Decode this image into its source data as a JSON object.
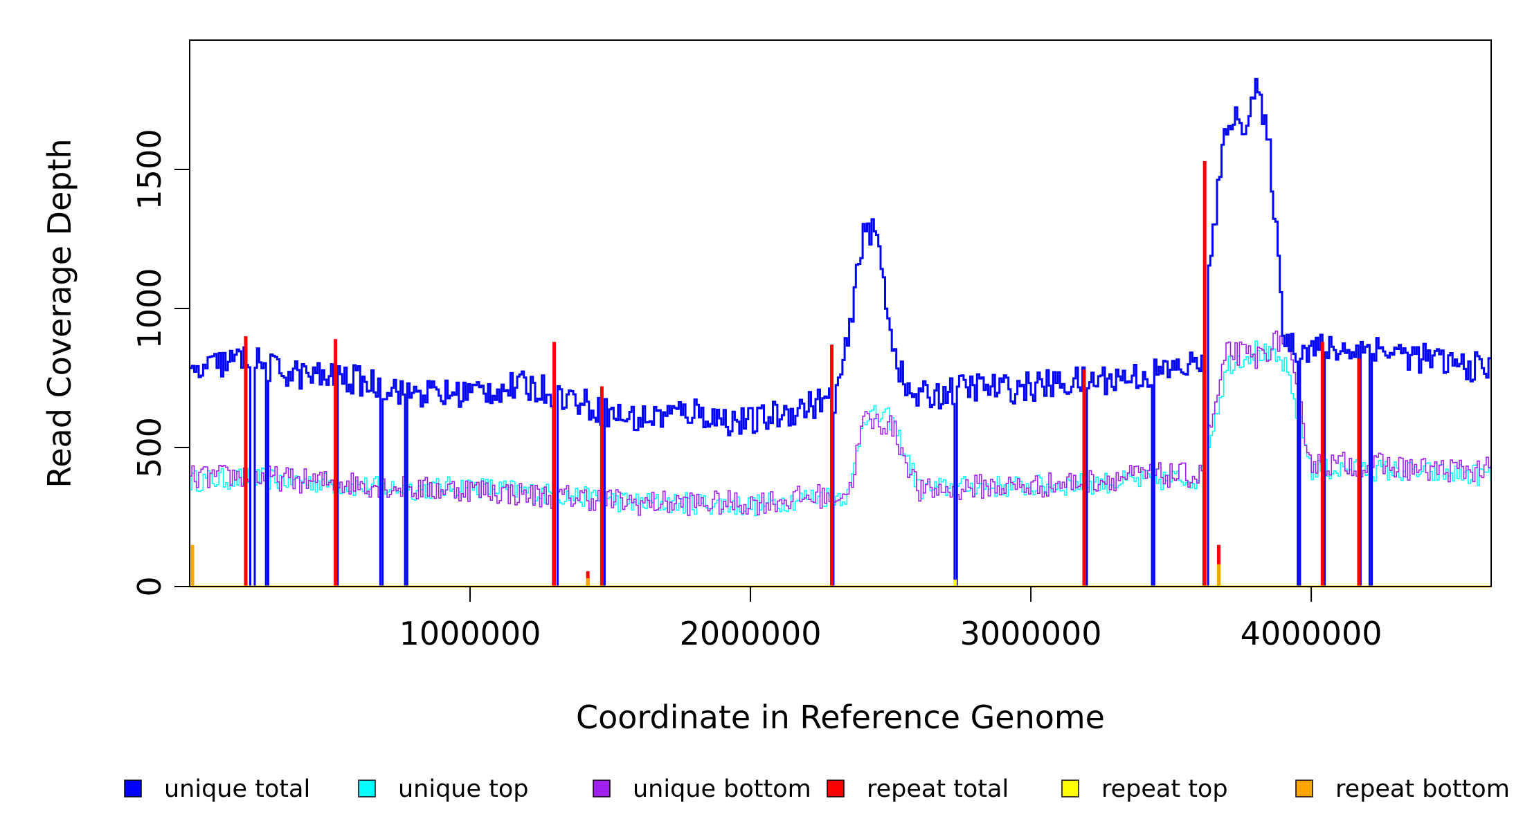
{
  "chart_data": {
    "type": "line",
    "title": "",
    "xlabel": "Coordinate in Reference Genome",
    "ylabel": "Read Coverage Depth",
    "xlim": [
      0,
      4641652
    ],
    "ylim": [
      0,
      1965
    ],
    "x_ticks": [
      1000000,
      2000000,
      3000000,
      4000000
    ],
    "x_tick_labels": [
      "1000000",
      "2000000",
      "3000000",
      "4000000"
    ],
    "y_ticks": [
      0,
      500,
      1000,
      1500
    ],
    "y_tick_labels": [
      "0",
      "500",
      "1000",
      "1500"
    ],
    "legend_position": "bottom",
    "series": [
      {
        "name": "unique total",
        "color": "#0000FF",
        "x": [
          0,
          100000,
          200000,
          300000,
          400000,
          500000,
          600000,
          700000,
          800000,
          900000,
          1000000,
          1100000,
          1200000,
          1300000,
          1400000,
          1500000,
          1600000,
          1700000,
          1800000,
          1900000,
          2000000,
          2100000,
          2200000,
          2300000,
          2350000,
          2400000,
          2450000,
          2500000,
          2550000,
          2600000,
          2700000,
          2800000,
          2900000,
          3000000,
          3100000,
          3200000,
          3300000,
          3400000,
          3500000,
          3600000,
          3650000,
          3700000,
          3750000,
          3800000,
          3850000,
          3900000,
          3950000,
          4000000,
          4100000,
          4200000,
          4300000,
          4400000,
          4500000,
          4641652
        ],
        "values": [
          760,
          800,
          820,
          780,
          760,
          750,
          740,
          720,
          700,
          690,
          700,
          710,
          720,
          700,
          660,
          620,
          600,
          620,
          630,
          600,
          590,
          620,
          650,
          680,
          900,
          1300,
          1250,
          900,
          700,
          680,
          700,
          720,
          710,
          720,
          730,
          740,
          750,
          760,
          780,
          800,
          1300,
          1700,
          1650,
          1800,
          1550,
          900,
          850,
          860,
          850,
          860,
          840,
          820,
          800,
          780
        ]
      },
      {
        "name": "unique top",
        "color": "#00FFFF",
        "x": [
          0,
          200000,
          400000,
          600000,
          800000,
          1000000,
          1200000,
          1400000,
          1600000,
          1800000,
          2000000,
          2200000,
          2350000,
          2400000,
          2500000,
          2600000,
          2800000,
          3000000,
          3200000,
          3400000,
          3600000,
          3700000,
          3800000,
          3900000,
          4000000,
          4200000,
          4400000,
          4641652
        ],
        "values": [
          380,
          390,
          380,
          360,
          350,
          360,
          340,
          320,
          300,
          300,
          290,
          320,
          330,
          620,
          600,
          350,
          360,
          360,
          370,
          380,
          390,
          800,
          850,
          800,
          420,
          420,
          410,
          400
        ]
      },
      {
        "name": "unique bottom",
        "color": "#A020F0",
        "x": [
          0,
          200000,
          400000,
          600000,
          800000,
          1000000,
          1200000,
          1400000,
          1600000,
          1800000,
          2000000,
          2200000,
          2350000,
          2400000,
          2500000,
          2600000,
          2800000,
          3000000,
          3200000,
          3400000,
          3600000,
          3700000,
          3800000,
          3900000,
          4000000,
          4200000,
          4400000,
          4641652
        ],
        "values": [
          390,
          400,
          380,
          370,
          350,
          350,
          330,
          320,
          300,
          300,
          300,
          320,
          340,
          600,
          580,
          340,
          360,
          360,
          380,
          400,
          400,
          850,
          820,
          900,
          440,
          440,
          420,
          420
        ]
      },
      {
        "name": "repeat total",
        "color": "#FF0000",
        "x": [
          200000,
          520000,
          1300000,
          1420000,
          1470000,
          2290000,
          3190000,
          3620000,
          3670000,
          4040000,
          4170000
        ],
        "values": [
          900,
          890,
          880,
          55,
          720,
          870,
          780,
          1530,
          150,
          880,
          820
        ]
      },
      {
        "name": "repeat top",
        "color": "#FFFF00",
        "x": [
          200000,
          2730000,
          3670000
        ],
        "values": [
          0,
          25,
          0
        ]
      },
      {
        "name": "repeat bottom",
        "color": "#FFA500",
        "x": [
          10000,
          1420000,
          3670000
        ],
        "values": [
          150,
          30,
          80
        ]
      }
    ],
    "dips_to_zero_at": [
      220000,
      270000,
      520000,
      680000,
      770000,
      1300000,
      1470000,
      2290000,
      2730000,
      3190000,
      3430000,
      3620000,
      3950000,
      4040000,
      4170000,
      4210000
    ]
  }
}
